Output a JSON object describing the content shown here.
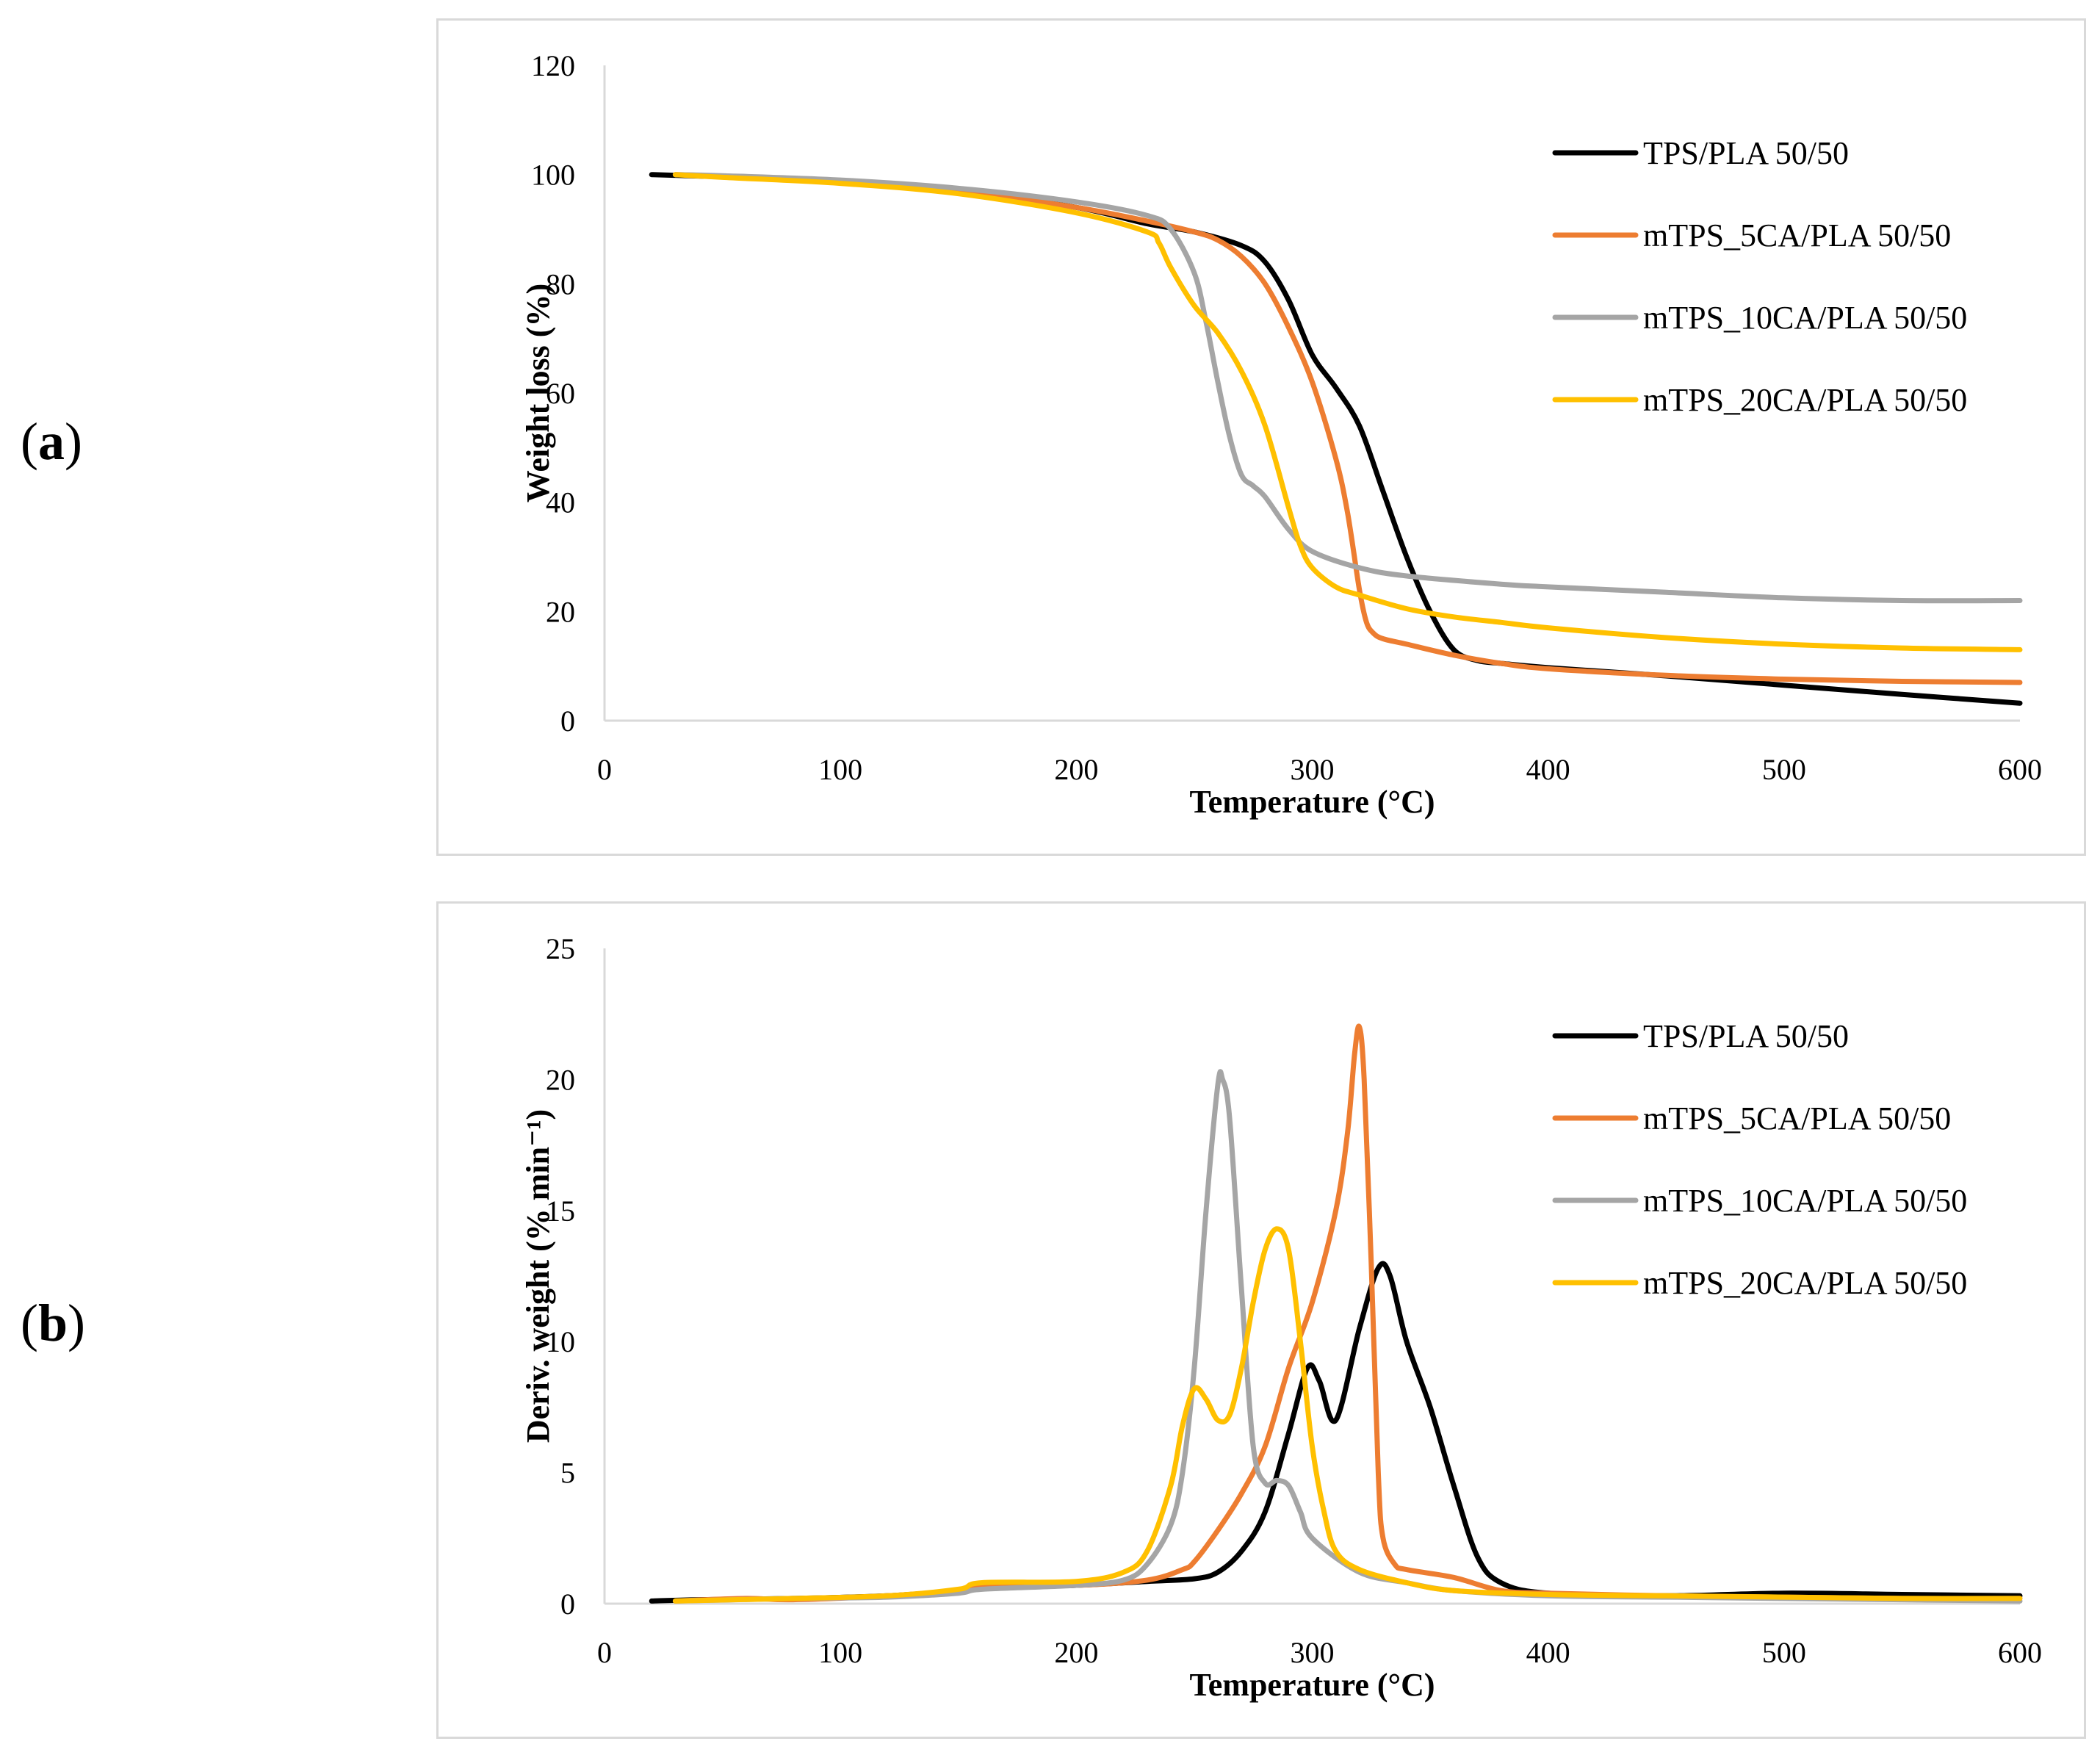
{
  "panels": {
    "a_label": "a",
    "b_label": "b"
  },
  "chart_data": [
    {
      "type": "line",
      "panel": "a",
      "title": "",
      "xlabel": "Temperature (°C)",
      "ylabel": "Weight loss (%)",
      "xlim": [
        0,
        600
      ],
      "ylim": [
        0,
        120
      ],
      "xticks": [
        0,
        100,
        200,
        300,
        400,
        500,
        600
      ],
      "yticks": [
        0,
        20,
        40,
        60,
        80,
        100,
        120
      ],
      "grid": false,
      "legend_position": "top-right",
      "series": [
        {
          "name": "TPS/PLA 50/50",
          "color": "#000000",
          "x": [
            20,
            50,
            100,
            150,
            200,
            230,
            250,
            270,
            280,
            290,
            300,
            310,
            320,
            330,
            340,
            350,
            360,
            370,
            380,
            400,
            450,
            500,
            550,
            600
          ],
          "y": [
            100,
            99.6,
            98.8,
            97,
            94,
            91,
            89.5,
            87,
            84,
            77,
            67,
            61,
            54,
            42,
            30,
            20,
            13,
            11,
            10.5,
            9.7,
            8.2,
            6.5,
            4.8,
            3.2
          ]
        },
        {
          "name": "mTPS_5CA/PLA 50/50",
          "color": "#ed7d31",
          "x": [
            30,
            50,
            100,
            150,
            200,
            230,
            250,
            260,
            270,
            280,
            290,
            300,
            310,
            315,
            320,
            323,
            326,
            330,
            340,
            360,
            380,
            400,
            450,
            500,
            550,
            600
          ],
          "y": [
            100,
            99.7,
            98.8,
            97,
            94,
            91.5,
            89.5,
            88,
            85,
            80,
            72,
            62,
            48,
            38,
            24,
            18,
            16,
            15,
            14,
            12,
            10.5,
            9.5,
            8.3,
            7.6,
            7.2,
            7
          ]
        },
        {
          "name": "mTPS_10CA/PLA 50/50",
          "color": "#a5a5a5",
          "x": [
            30,
            50,
            100,
            150,
            200,
            230,
            240,
            250,
            255,
            260,
            265,
            270,
            275,
            280,
            290,
            300,
            320,
            340,
            380,
            400,
            450,
            500,
            550,
            600
          ],
          "y": [
            100,
            99.8,
            99,
            97.5,
            95,
            92.5,
            90,
            82,
            73,
            62,
            52,
            45,
            43,
            41,
            35,
            31,
            28,
            26.5,
            25,
            24.5,
            23.5,
            22.5,
            22,
            22
          ]
        },
        {
          "name": "mTPS_20CA/PLA 50/50",
          "color": "#ffc000",
          "x": [
            30,
            50,
            100,
            150,
            200,
            230,
            235,
            240,
            250,
            260,
            270,
            280,
            290,
            295,
            300,
            310,
            320,
            340,
            360,
            380,
            400,
            450,
            500,
            550,
            600
          ],
          "y": [
            100,
            99.5,
            98.4,
            96.5,
            93,
            89.5,
            87.5,
            83,
            76,
            71,
            64,
            54,
            39,
            32,
            28,
            24.5,
            23,
            20.5,
            19,
            18,
            17,
            15.2,
            14,
            13.3,
            13
          ]
        }
      ]
    },
    {
      "type": "line",
      "panel": "b",
      "title": "",
      "xlabel": "Temperature (°C)",
      "ylabel": "Deriv. weight (% min⁻¹)",
      "xlim": [
        0,
        600
      ],
      "ylim": [
        0,
        25
      ],
      "xticks": [
        0,
        100,
        200,
        300,
        400,
        500,
        600
      ],
      "yticks": [
        0,
        5,
        10,
        15,
        20,
        25
      ],
      "grid": false,
      "legend_position": "top-right",
      "series": [
        {
          "name": "TPS/PLA 50/50",
          "color": "#000000",
          "x": [
            20,
            40,
            80,
            120,
            150,
            160,
            200,
            230,
            250,
            260,
            270,
            280,
            290,
            298,
            303,
            310,
            320,
            328,
            333,
            340,
            350,
            360,
            370,
            380,
            400,
            450,
            500,
            550,
            600
          ],
          "y": [
            0.1,
            0.15,
            0.2,
            0.3,
            0.5,
            0.6,
            0.7,
            0.85,
            0.95,
            1.2,
            2,
            3.5,
            6.5,
            9,
            8.5,
            7,
            10.5,
            12.8,
            12.5,
            10,
            7.5,
            4.5,
            1.8,
            0.8,
            0.4,
            0.3,
            0.4,
            0.35,
            0.3
          ]
        },
        {
          "name": "mTPS_5CA/PLA 50/50",
          "color": "#ed7d31",
          "x": [
            30,
            60,
            80,
            120,
            150,
            160,
            200,
            230,
            245,
            250,
            260,
            270,
            280,
            290,
            300,
            310,
            315,
            318,
            320,
            322,
            325,
            328,
            330,
            335,
            340,
            360,
            380,
            400,
            450,
            500,
            550,
            600
          ],
          "y": [
            0.1,
            0.2,
            0.15,
            0.3,
            0.5,
            0.7,
            0.7,
            0.9,
            1.3,
            1.6,
            2.8,
            4.2,
            6,
            9,
            11.5,
            15,
            18,
            21,
            22,
            20,
            13,
            5,
            2.5,
            1.5,
            1.3,
            1,
            0.5,
            0.4,
            0.3,
            0.25,
            0.2,
            0.2
          ]
        },
        {
          "name": "mTPS_10CA/PLA 50/50",
          "color": "#a5a5a5",
          "x": [
            30,
            80,
            120,
            150,
            160,
            200,
            220,
            230,
            240,
            245,
            250,
            255,
            260,
            262,
            265,
            270,
            275,
            280,
            285,
            290,
            295,
            300,
            320,
            340,
            360,
            400,
            450,
            500,
            550,
            600
          ],
          "y": [
            0.1,
            0.2,
            0.25,
            0.4,
            0.55,
            0.7,
            0.9,
            1.5,
            3,
            5,
            9,
            15,
            19.8,
            20,
            18.5,
            12,
            6,
            4.6,
            4.7,
            4.5,
            3.5,
            2.5,
            1.2,
            0.8,
            0.5,
            0.3,
            0.25,
            0.2,
            0.15,
            0.1
          ]
        },
        {
          "name": "mTPS_20CA/PLA 50/50",
          "color": "#ffc000",
          "x": [
            30,
            80,
            120,
            150,
            160,
            200,
            220,
            230,
            240,
            245,
            250,
            255,
            260,
            265,
            270,
            275,
            280,
            285,
            290,
            295,
            300,
            305,
            310,
            320,
            340,
            360,
            400,
            450,
            500,
            550,
            600
          ],
          "y": [
            0.1,
            0.2,
            0.3,
            0.55,
            0.8,
            0.85,
            1.2,
            2,
            4.5,
            6.8,
            8.2,
            7.8,
            7,
            7.2,
            9,
            11.5,
            13.5,
            14.3,
            13.5,
            10,
            6,
            3.5,
            2,
            1.3,
            0.8,
            0.5,
            0.35,
            0.3,
            0.25,
            0.2,
            0.2
          ]
        }
      ]
    }
  ]
}
